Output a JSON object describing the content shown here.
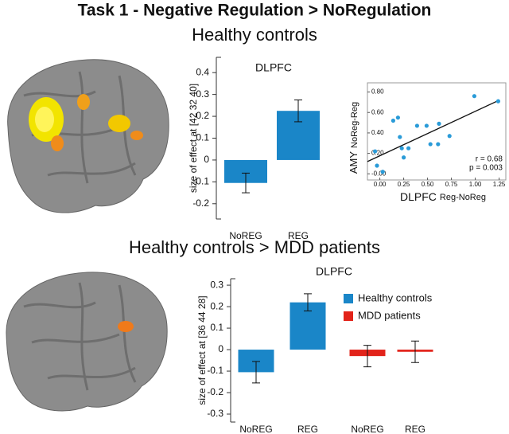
{
  "title": "Task 1 - Negative Regulation > NoRegulation",
  "sections": [
    "Healthy controls",
    "Healthy controls > MDD patients"
  ],
  "chart_data": [
    {
      "type": "bar",
      "title": "DLPFC",
      "ylabel": "size of effect at [42 32 40]",
      "categories": [
        "NoREG",
        "REG"
      ],
      "series": [
        {
          "name": null,
          "color": "#1a86c8",
          "values": [
            -0.105,
            0.225
          ],
          "errors": [
            0.045,
            0.05
          ]
        }
      ],
      "ylim": [
        -0.27,
        0.47
      ],
      "yticks": [
        -0.2,
        -0.1,
        0,
        0.1,
        0.2,
        0.3,
        0.4
      ]
    },
    {
      "type": "scatter",
      "xlabel": "DLPFC",
      "xlabel_sub": "Reg-NoReg",
      "ylabel": "AMY",
      "ylabel_sub": "NoReg-Reg",
      "x": [
        -0.05,
        -0.03,
        0.03,
        0.14,
        0.19,
        0.21,
        0.23,
        0.25,
        0.3,
        0.39,
        0.49,
        0.53,
        0.61,
        0.62,
        0.73,
        0.99,
        1.24
      ],
      "y": [
        0.22,
        0.08,
        0.02,
        0.52,
        0.55,
        0.36,
        0.25,
        0.16,
        0.25,
        0.47,
        0.47,
        0.29,
        0.29,
        0.49,
        0.37,
        0.76,
        0.71
      ],
      "color": "#2a9bd8",
      "fit_line": {
        "x": [
          -0.13,
          1.25
        ],
        "y": [
          0.12,
          0.72
        ]
      },
      "annotations": [
        "r = 0.68",
        "p = 0.003"
      ],
      "xlim": [
        -0.13,
        1.32
      ],
      "ylim": [
        -0.06,
        0.89
      ],
      "xticks": [
        {
          "value": 0,
          "label": "0.00"
        },
        0.25,
        {
          "value": 0.5,
          "label": "0.50"
        },
        0.75,
        {
          "value": 1,
          "label": "1.00"
        },
        1.25
      ],
      "yticks": [
        {
          "value": 0,
          "label": "-0.00"
        },
        {
          "value": 0.2,
          "label": "0.20"
        },
        {
          "value": 0.4,
          "label": "0.40"
        },
        {
          "value": 0.6,
          "label": "0.60"
        },
        {
          "value": 0.8,
          "label": "0.80"
        }
      ]
    },
    {
      "type": "bar",
      "title": "DLPFC",
      "ylabel": "size of effect at [36 44 28]",
      "categories": [
        "NoREG",
        "REG",
        "NoREG",
        "REG"
      ],
      "series": [
        {
          "name": "Healthy controls",
          "color": "#1a86c8",
          "values": [
            -0.105,
            0.22,
            null,
            null
          ],
          "errors": [
            0.05,
            0.04,
            null,
            null
          ]
        },
        {
          "name": "MDD patients",
          "color": "#e2231a",
          "values": [
            null,
            null,
            -0.03,
            -0.01
          ],
          "errors": [
            null,
            null,
            0.05,
            0.05
          ]
        }
      ],
      "legend": "upper right",
      "ylim": [
        -0.337,
        0.33
      ],
      "yticks": [
        -0.3,
        -0.2,
        -0.1,
        0,
        0.1,
        0.2,
        0.3
      ]
    }
  ]
}
